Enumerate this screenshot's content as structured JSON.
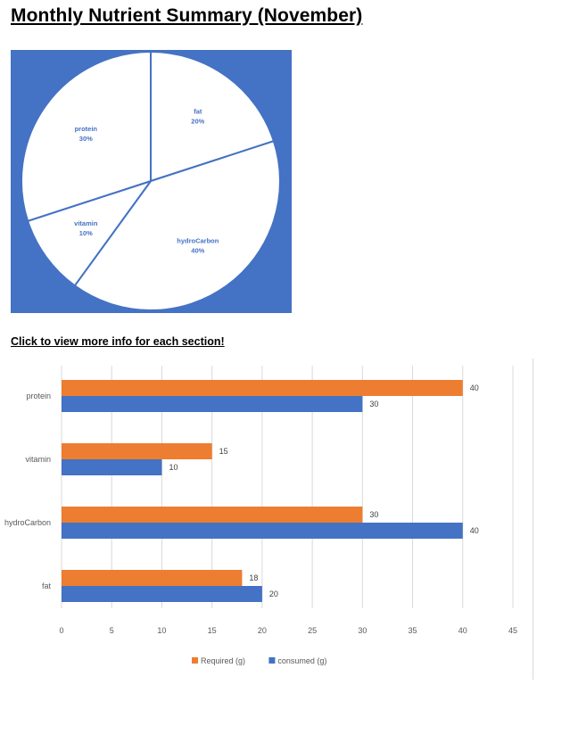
{
  "page": {
    "title": "Monthly Nutrient Summary (November)",
    "section_link": "Click to view more info for each section!"
  },
  "chart_data": [
    {
      "type": "pie",
      "slices": [
        {
          "label": "fat",
          "value": 20,
          "pct_label": "20%"
        },
        {
          "label": "hydroCarbon",
          "value": 40,
          "pct_label": "40%"
        },
        {
          "label": "vitamin",
          "value": 10,
          "pct_label": "10%"
        },
        {
          "label": "protein",
          "value": 30,
          "pct_label": "30%"
        }
      ],
      "colors": {
        "background": "#4472c4",
        "slice_fill": "#ffffff",
        "slice_line": "#4472c4",
        "label": "#4472c4"
      }
    },
    {
      "type": "bar",
      "orientation": "horizontal",
      "categories": [
        "protein",
        "vitamin",
        "hydroCarbon",
        "fat"
      ],
      "series": [
        {
          "name": "Required (g)",
          "values": [
            40,
            15,
            30,
            18
          ],
          "color": "#ed7d31"
        },
        {
          "name": "consumed (g)",
          "values": [
            30,
            10,
            40,
            20
          ],
          "color": "#4472c4"
        }
      ],
      "xlim": [
        0,
        45
      ],
      "xticks": [
        0,
        5,
        10,
        15,
        20,
        25,
        30,
        35,
        40,
        45
      ],
      "grid": true,
      "legend": "bottom"
    }
  ]
}
